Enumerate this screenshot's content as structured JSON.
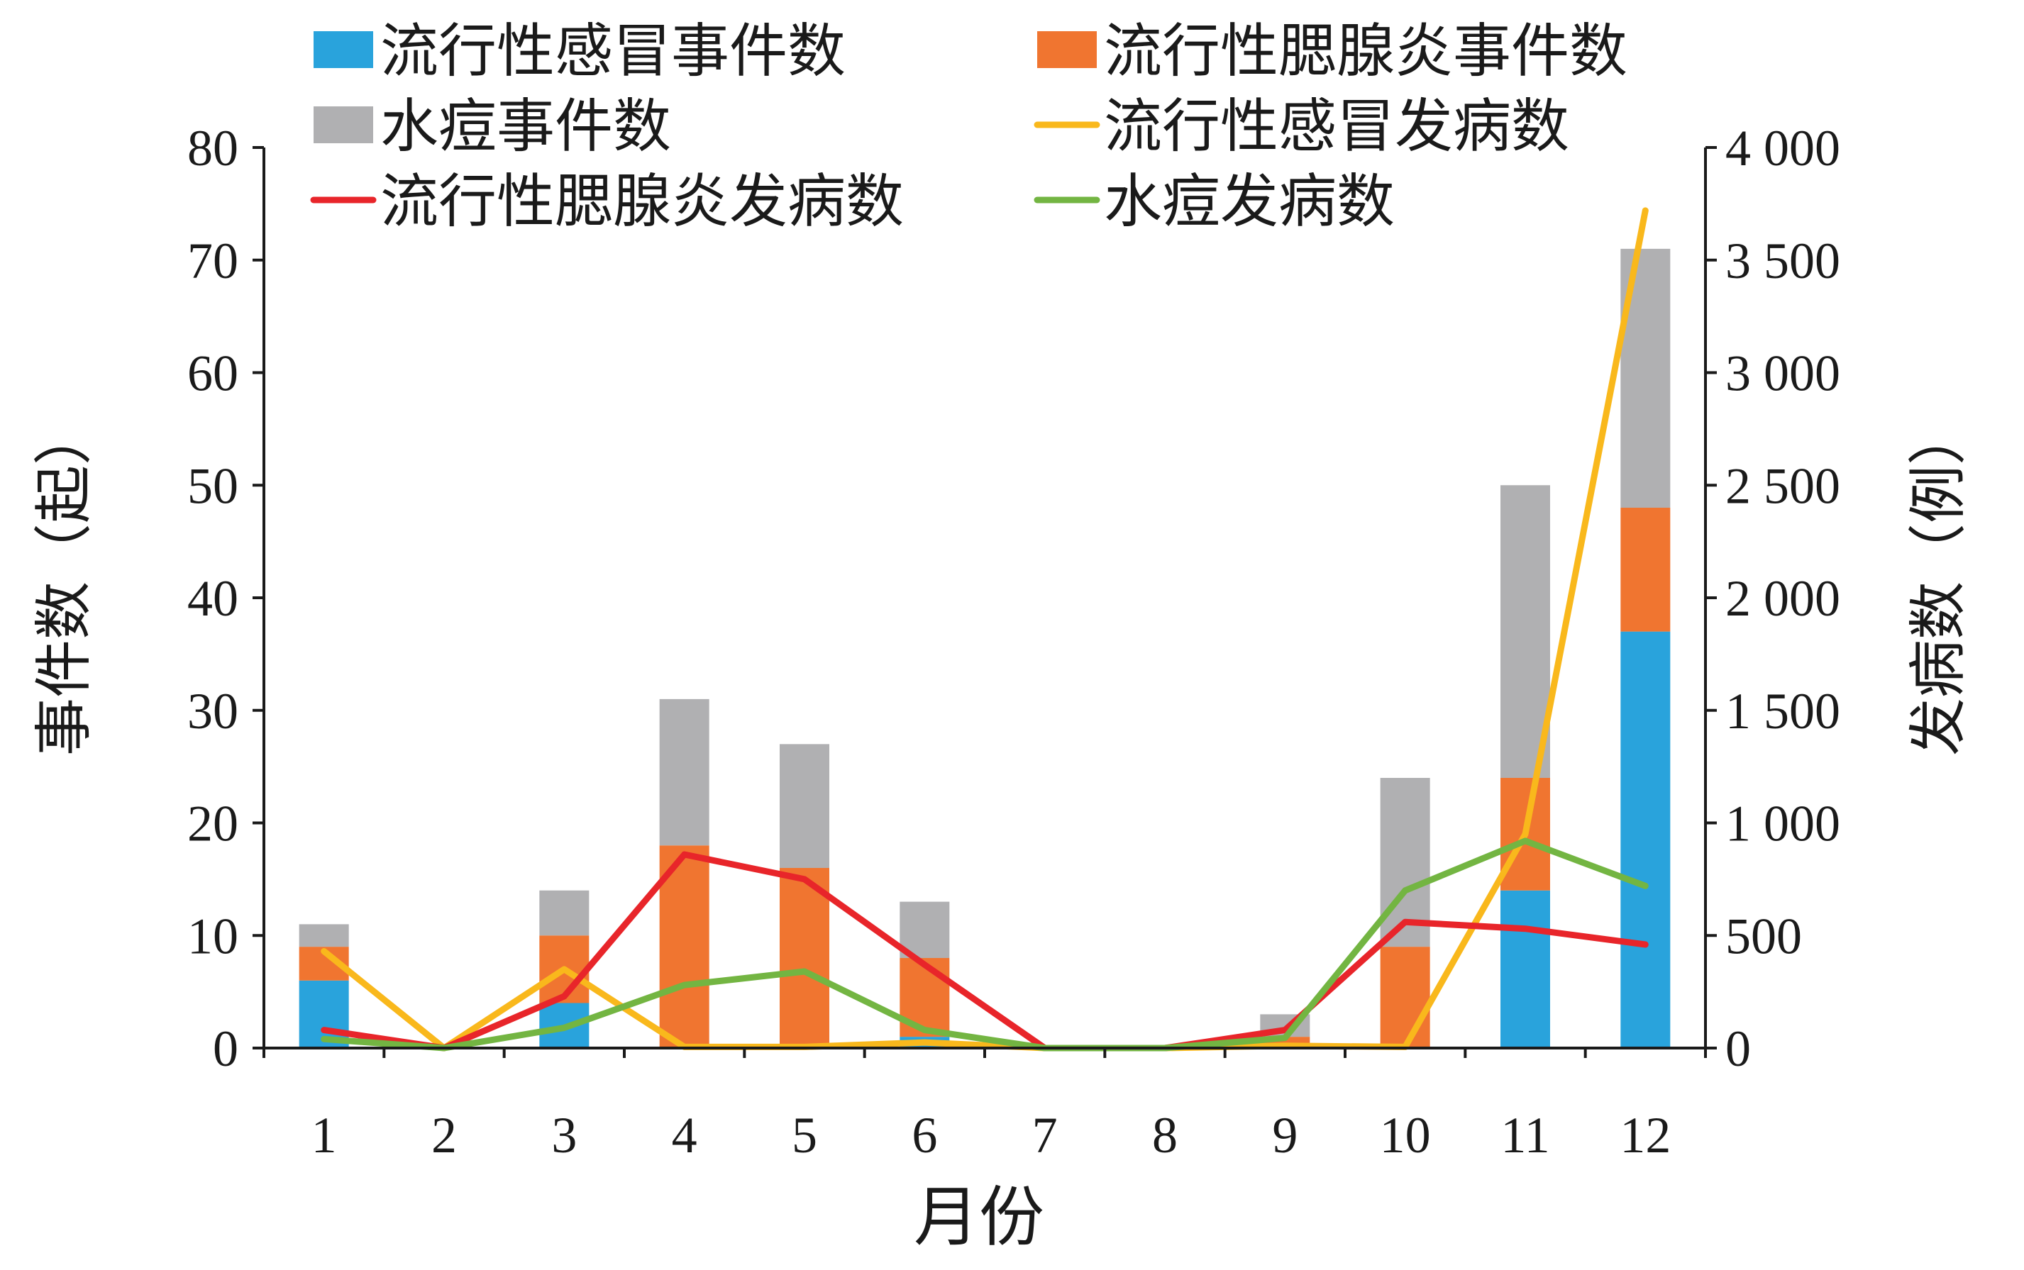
{
  "chart_data": {
    "type": "bar",
    "stacked": true,
    "categories": [
      "1",
      "2",
      "3",
      "4",
      "5",
      "6",
      "7",
      "8",
      "9",
      "10",
      "11",
      "12"
    ],
    "xlabel": "月份",
    "ylabel_left": "事件数（起）",
    "ylabel_right": "发病数（例）",
    "ylim_left": [
      0,
      80
    ],
    "ylim_right": [
      0,
      4000
    ],
    "yticks_left": [
      "0",
      "10",
      "20",
      "30",
      "40",
      "50",
      "60",
      "70",
      "80"
    ],
    "yticks_right": [
      "0",
      "500",
      "1 000",
      "1 500",
      "2 000",
      "2 500",
      "3 000",
      "3 500",
      "4 000"
    ],
    "grid": false,
    "legend_position": "top",
    "bar_series": [
      {
        "name": "流行性感冒事件数",
        "color": "#29a3dc",
        "values": [
          6,
          0,
          4,
          0,
          0,
          1,
          0,
          0,
          0,
          0,
          14,
          37
        ]
      },
      {
        "name": "流行性腮腺炎事件数",
        "color": "#f07530",
        "values": [
          3,
          0,
          6,
          18,
          16,
          7,
          0,
          0,
          1,
          9,
          10,
          11
        ]
      },
      {
        "name": "水痘事件数",
        "color": "#b0b0b2",
        "values": [
          2,
          0,
          4,
          13,
          11,
          5,
          0,
          0,
          2,
          15,
          26,
          23
        ]
      }
    ],
    "line_series": [
      {
        "name": "流行性感冒发病数",
        "color": "#f9b81c",
        "values": [
          430,
          0,
          350,
          5,
          5,
          25,
          0,
          0,
          10,
          5,
          950,
          3720
        ]
      },
      {
        "name": "流行性腮腺炎发病数",
        "color": "#e8252a",
        "values": [
          80,
          0,
          230,
          860,
          750,
          370,
          0,
          0,
          80,
          560,
          530,
          460
        ]
      },
      {
        "name": "水痘发病数",
        "color": "#73b542",
        "values": [
          40,
          0,
          90,
          280,
          340,
          80,
          0,
          0,
          45,
          700,
          920,
          720
        ]
      }
    ]
  }
}
